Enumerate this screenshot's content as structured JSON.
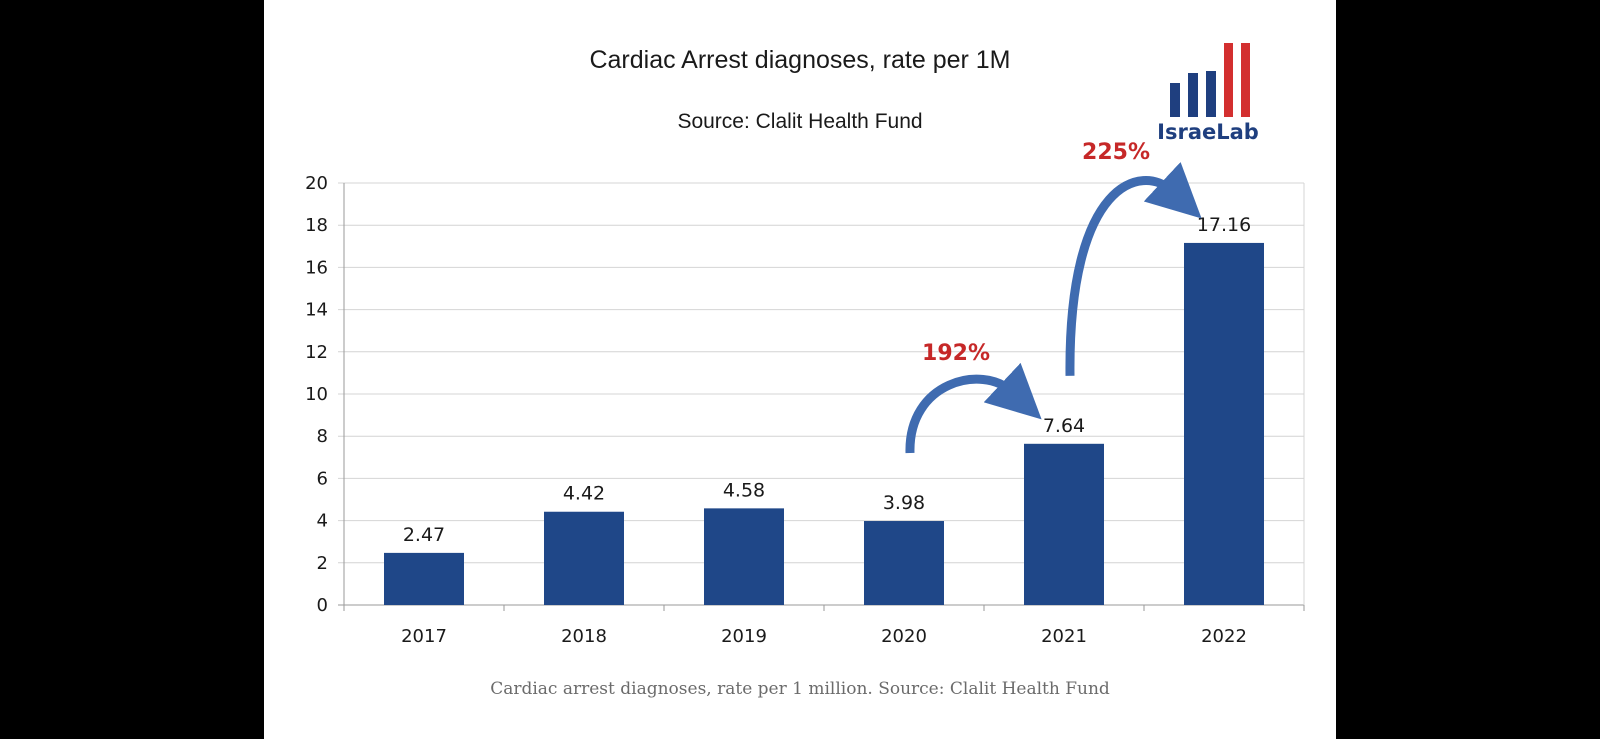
{
  "chart_data": {
    "type": "bar",
    "title": "Cardiac Arrest diagnoses, rate per 1M",
    "subtitle": "Source: Clalit Health Fund",
    "categories": [
      "2017",
      "2018",
      "2019",
      "2020",
      "2021",
      "2022"
    ],
    "values": [
      2.47,
      4.42,
      4.58,
      3.98,
      7.64,
      17.16
    ],
    "value_labels": [
      "2.47",
      "4.42",
      "4.58",
      "3.98",
      "7.64",
      "17.16"
    ],
    "ylim": [
      0,
      20
    ],
    "yticks": [
      "0",
      "2",
      "4",
      "6",
      "8",
      "10",
      "12",
      "14",
      "16",
      "18",
      "20"
    ],
    "xlabel": "",
    "ylabel": "",
    "grid": true,
    "bar_color": "#1f4788",
    "annotations": [
      {
        "text": "192%",
        "from": "2020",
        "to": "2021"
      },
      {
        "text": "225%",
        "from": "2021",
        "to": "2022"
      }
    ],
    "annotation_color": "#c62828",
    "arrow_color": "#3f6bb0"
  },
  "logo": {
    "text": "IsraeLab",
    "blue": "#1f3f7f",
    "red": "#d32f2f"
  },
  "caption": "Cardiac arrest diagnoses, rate per 1 million. Source: Clalit Health Fund"
}
